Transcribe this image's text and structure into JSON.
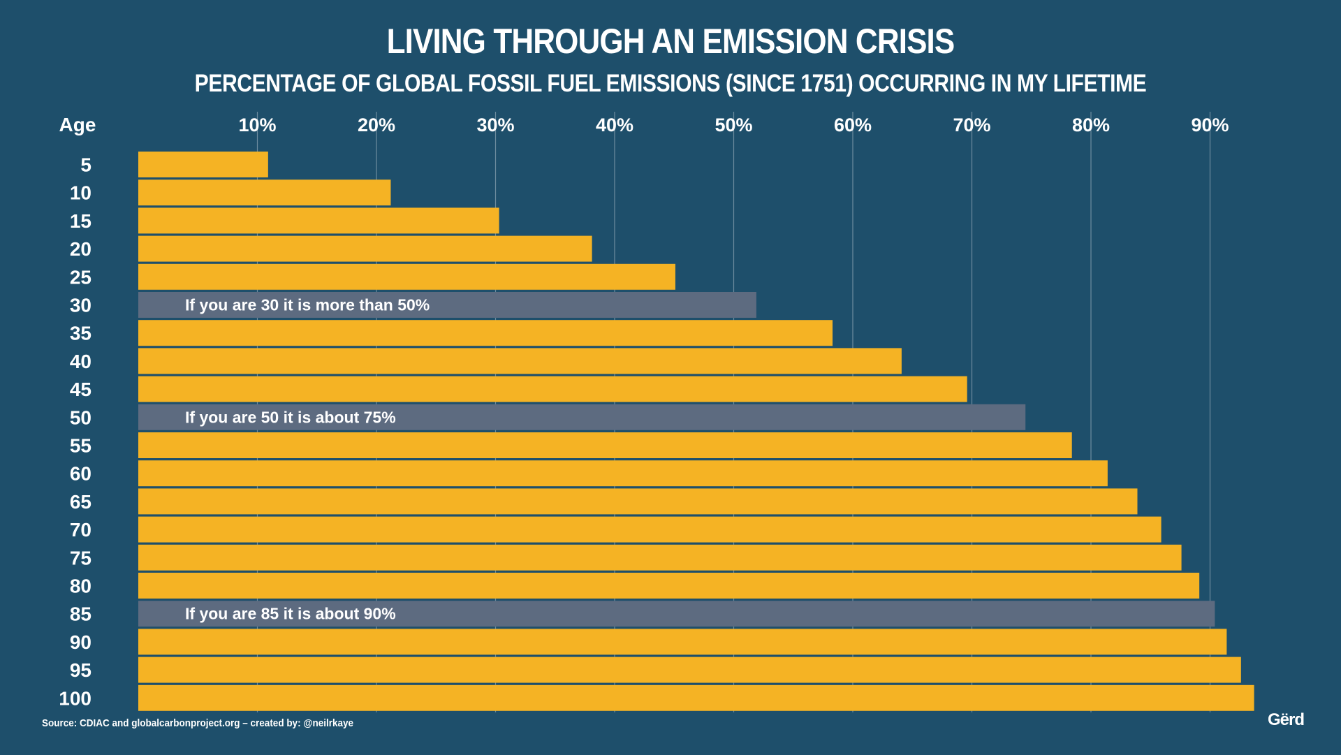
{
  "header": {
    "title": "LIVING THROUGH AN EMISSION CRISIS",
    "subtitle": "PERCENTAGE OF GLOBAL FOSSIL FUEL EMISSIONS (SINCE 1751) OCCURRING IN MY LIFETIME"
  },
  "footer": {
    "source": "Source: CDIAC and globalcarbonproject.org – created by: @neilrkaye",
    "logo": "Gërd"
  },
  "colors": {
    "background": "#1e4f6b",
    "bar": "#f5b324",
    "highlight_bar": "#5d6b80",
    "gridline": "#8fa6b5"
  },
  "chart_data": {
    "type": "bar",
    "orientation": "horizontal",
    "title": "LIVING THROUGH AN EMISSION CRISIS",
    "subtitle": "PERCENTAGE OF GLOBAL FOSSIL FUEL EMISSIONS (SINCE 1751) OCCURRING IN MY LIFETIME",
    "ylabel": "Age",
    "xlabel": "",
    "xlim": [
      0,
      100
    ],
    "grid": true,
    "x_ticks": [
      "10%",
      "20%",
      "30%",
      "40%",
      "50%",
      "60%",
      "70%",
      "80%",
      "90%"
    ],
    "categories": [
      "5",
      "10",
      "15",
      "20",
      "25",
      "30",
      "35",
      "40",
      "45",
      "50",
      "55",
      "60",
      "65",
      "70",
      "75",
      "80",
      "85",
      "90",
      "95",
      "100"
    ],
    "values": [
      10.9,
      21.2,
      30.3,
      38.1,
      45.1,
      51.9,
      58.3,
      64.1,
      69.6,
      74.5,
      78.4,
      81.4,
      83.9,
      85.9,
      87.6,
      89.1,
      90.4,
      91.4,
      92.6,
      93.7
    ],
    "highlight_categories": [
      "30",
      "50",
      "85"
    ],
    "annotations": [
      {
        "category": "30",
        "text": "If you are 30 it is more than 50%"
      },
      {
        "category": "50",
        "text": "If you are 50 it is about 75%"
      },
      {
        "category": "85",
        "text": "If you are 85 it is about 90%"
      }
    ]
  }
}
